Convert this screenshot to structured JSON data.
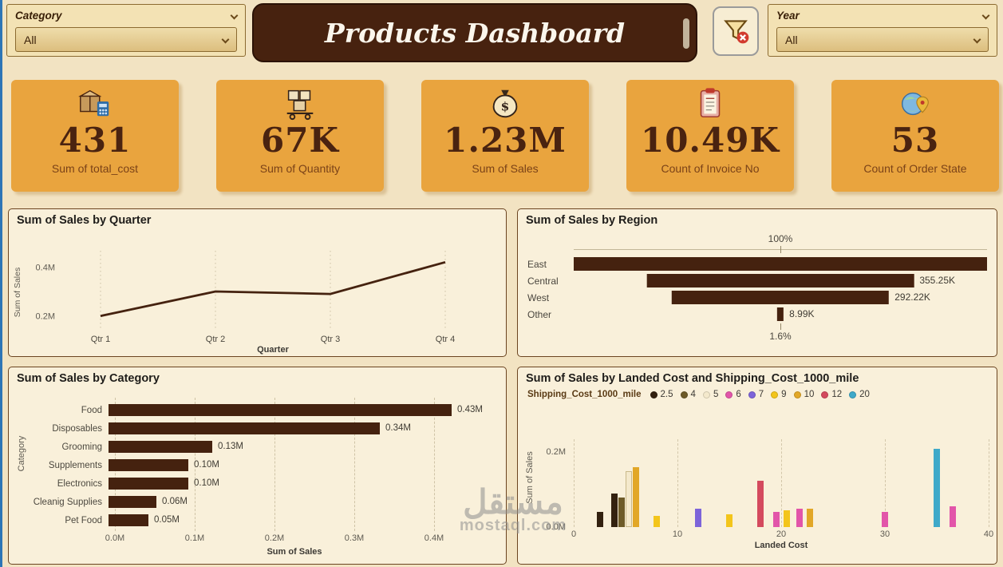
{
  "colors": {
    "page_bg": "#F2E3C2",
    "panel_bg": "#F9F0DA",
    "panel_border": "#6B4420",
    "card_bg": "#E9A43E",
    "dark_brown": "#45220F",
    "title_bar_bg": "#47220F"
  },
  "header": {
    "category_slicer": {
      "label": "Category",
      "value": "All"
    },
    "title": "Products Dashboard",
    "year_slicer": {
      "label": "Year",
      "value": "All"
    }
  },
  "kpis": [
    {
      "icon": "package-calculator-icon",
      "value": "431",
      "label": "Sum of total_cost"
    },
    {
      "icon": "stacked-boxes-icon",
      "value": "67K",
      "label": "Sum of Quantity"
    },
    {
      "icon": "money-bag-icon",
      "value": "1.23M",
      "label": "Sum of Sales"
    },
    {
      "icon": "invoice-icon",
      "value": "10.49K",
      "label": "Count of Invoice No"
    },
    {
      "icon": "globe-pin-icon",
      "value": "53",
      "label": "Count of Order State"
    }
  ],
  "chart_data": [
    {
      "type": "line",
      "title": "Sum of Sales by Quarter",
      "categories": [
        "Qtr 1",
        "Qtr 2",
        "Qtr 3",
        "Qtr 4"
      ],
      "values": [
        0.2,
        0.3,
        0.29,
        0.42
      ],
      "unit": "M",
      "xlabel": "Quarter",
      "ylabel": "Sum of Sales",
      "yticks": [
        {
          "value": 0.2,
          "label": "0.2M"
        },
        {
          "value": 0.4,
          "label": "0.4M"
        }
      ],
      "ylim": [
        0.15,
        0.46
      ],
      "line_color": "#45220F"
    },
    {
      "type": "funnel",
      "title": "Sum of Sales by Region",
      "categories": [
        "East",
        "Central",
        "West",
        "Other"
      ],
      "percent_of_first": [
        100,
        64.6,
        52.6,
        1.6
      ],
      "value_labels": [
        "",
        "355.25K",
        "292.22K",
        "8.99K"
      ],
      "top_axis_label": "100%",
      "bottom_axis_label": "1.6%",
      "bar_color": "#45220F"
    },
    {
      "type": "bar",
      "title": "Sum of Sales by Category",
      "categories": [
        "Food",
        "Disposables",
        "Grooming",
        "Supplements",
        "Electronics",
        "Cleanig Supplies",
        "Pet Food"
      ],
      "values": [
        0.43,
        0.34,
        0.13,
        0.1,
        0.1,
        0.06,
        0.05
      ],
      "value_labels": [
        "0.43M",
        "0.34M",
        "0.13M",
        "0.10M",
        "0.10M",
        "0.06M",
        "0.05M"
      ],
      "xticks": [
        {
          "value": 0,
          "label": "0.0M"
        },
        {
          "value": 0.1,
          "label": "0.1M"
        },
        {
          "value": 0.2,
          "label": "0.2M"
        },
        {
          "value": 0.3,
          "label": "0.3M"
        },
        {
          "value": 0.4,
          "label": "0.4M"
        }
      ],
      "xlim": [
        0,
        0.45
      ],
      "xlabel": "Sum of Sales",
      "ylabel": "Category",
      "bar_color": "#45220F"
    },
    {
      "type": "column",
      "title": "Sum of Sales by Landed Cost and Shipping_Cost_1000_mile",
      "legend_title": "Shipping_Cost_1000_mile",
      "legend_order": [
        "2.5",
        "4",
        "5",
        "6",
        "7",
        "9",
        "10",
        "12",
        "20"
      ],
      "series_colors": {
        "2.5": "#33210F",
        "4": "#6E5B28",
        "5": "#F4E9CC",
        "6": "#E255A9",
        "7": "#7D64D9",
        "9": "#F3C51B",
        "10": "#E2A727",
        "12": "#D44A5E",
        "20": "#3FA9C9"
      },
      "xlabel": "Landed Cost",
      "ylabel": "Sum of Sales",
      "xticks": [
        0,
        10,
        20,
        30,
        40
      ],
      "yticks": [
        {
          "value": 0,
          "label": "0.0M"
        },
        {
          "value": 0.2,
          "label": "0.2M"
        }
      ],
      "xlim": [
        0,
        40
      ],
      "ylim": [
        0,
        0.235
      ],
      "bars": [
        {
          "x": 2.5,
          "value": 0.04,
          "series": "2.5"
        },
        {
          "x": 3.9,
          "value": 0.09,
          "series": "2.5"
        },
        {
          "x": 4.6,
          "value": 0.08,
          "series": "4"
        },
        {
          "x": 5.3,
          "value": 0.15,
          "series": "5"
        },
        {
          "x": 6.0,
          "value": 0.16,
          "series": "10"
        },
        {
          "x": 8.0,
          "value": 0.03,
          "series": "9"
        },
        {
          "x": 12.0,
          "value": 0.05,
          "series": "7"
        },
        {
          "x": 15.0,
          "value": 0.035,
          "series": "9"
        },
        {
          "x": 18.0,
          "value": 0.125,
          "series": "12"
        },
        {
          "x": 19.5,
          "value": 0.04,
          "series": "6"
        },
        {
          "x": 20.5,
          "value": 0.045,
          "series": "9"
        },
        {
          "x": 21.8,
          "value": 0.05,
          "series": "6"
        },
        {
          "x": 22.8,
          "value": 0.05,
          "series": "10"
        },
        {
          "x": 30.0,
          "value": 0.04,
          "series": "6"
        },
        {
          "x": 35.0,
          "value": 0.21,
          "series": "20"
        },
        {
          "x": 36.5,
          "value": 0.055,
          "series": "6"
        }
      ]
    }
  ],
  "watermark": {
    "line1": "مستقل",
    "line2": "mostaql.com"
  }
}
